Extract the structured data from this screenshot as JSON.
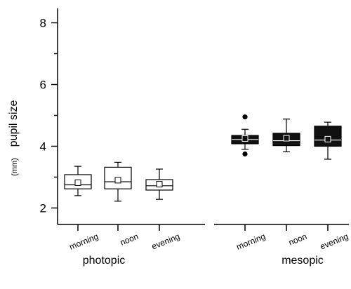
{
  "chart_data": {
    "type": "box",
    "ylabel": "pupil size",
    "ylabel_unit": "(mm)",
    "ylim": [
      1.4,
      8.5
    ],
    "yticks": [
      2,
      4,
      6,
      8
    ],
    "groups": [
      {
        "label": "photopic",
        "fill": "#ffffff",
        "boxes": [
          {
            "category": "morning",
            "whisker_low": 2.4,
            "q1": 2.62,
            "median": 2.75,
            "q3": 3.08,
            "whisker_high": 3.35,
            "mean": 2.82,
            "outliers": []
          },
          {
            "category": "noon",
            "whisker_low": 2.22,
            "q1": 2.62,
            "median": 2.85,
            "q3": 3.32,
            "whisker_high": 3.48,
            "mean": 2.9,
            "outliers": []
          },
          {
            "category": "evening",
            "whisker_low": 2.28,
            "q1": 2.58,
            "median": 2.72,
            "q3": 2.92,
            "whisker_high": 3.26,
            "mean": 2.77,
            "outliers": []
          }
        ]
      },
      {
        "label": "mesopic",
        "fill": "#111111",
        "boxes": [
          {
            "category": "morning",
            "whisker_low": 3.9,
            "q1": 4.08,
            "median": 4.22,
            "q3": 4.35,
            "whisker_high": 4.55,
            "mean": 4.25,
            "outliers": [
              3.75,
              4.95
            ]
          },
          {
            "category": "noon",
            "whisker_low": 3.82,
            "q1": 4.02,
            "median": 4.18,
            "q3": 4.42,
            "whisker_high": 4.88,
            "mean": 4.26,
            "outliers": []
          },
          {
            "category": "evening",
            "whisker_low": 3.58,
            "q1": 4.0,
            "median": 4.2,
            "q3": 4.65,
            "whisker_high": 4.78,
            "mean": 4.23,
            "outliers": []
          }
        ]
      }
    ]
  }
}
